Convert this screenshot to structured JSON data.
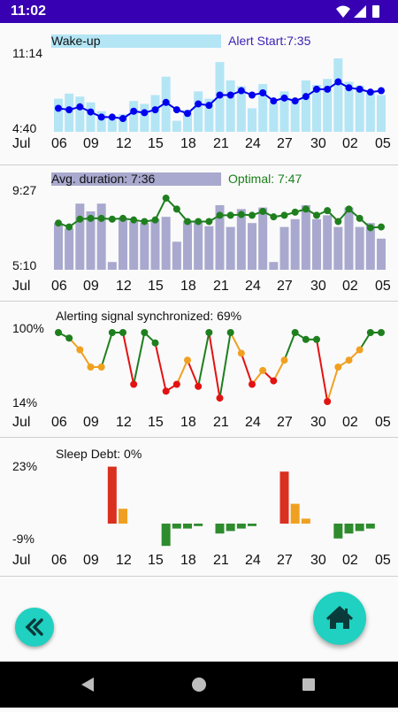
{
  "status_bar": {
    "time": "11:02",
    "icons": [
      "wifi-icon",
      "signal-icon",
      "battery-icon"
    ]
  },
  "x_axis": {
    "month": "Jul",
    "ticks": [
      "06",
      "09",
      "12",
      "15",
      "18",
      "21",
      "24",
      "27",
      "30",
      "02",
      "05"
    ]
  },
  "panels": [
    {
      "id": "wakeup",
      "title": "Wake-up",
      "side_label": "Alert Start:7:35",
      "y_top": "11:14",
      "y_bottom": "4:40",
      "bar_color": "#b3e5f5",
      "title_box_color": "#b3e5f5",
      "side_color": "#3b1fb3",
      "line_color": "#0000ee"
    },
    {
      "id": "duration",
      "title": "Avg. duration: 7:36",
      "side_label": "Optimal: 7:47",
      "y_top": "9:27",
      "y_bottom": "5:10",
      "bar_color": "#a9a9cf",
      "title_box_color": "#a9a9cf",
      "side_color": "#1a7f1a",
      "line_color": "#1f7f1f"
    },
    {
      "id": "alerting",
      "title": "Alerting signal synchronized: 69%",
      "y_top": "100%",
      "y_bottom": "14%"
    },
    {
      "id": "debt",
      "title": "Sleep Debt: 0%",
      "y_top": "23%",
      "y_bottom": "-9%"
    }
  ],
  "buttons": {
    "back_icon": "double-chevron-left-icon",
    "home_icon": "home-icon"
  },
  "nav": {
    "back": "triangle-back-icon",
    "home": "circle-home-icon",
    "recents": "square-recents-icon"
  },
  "chart_data": [
    {
      "type": "bar",
      "name": "wake-up",
      "categories": [
        "06",
        "07",
        "08",
        "09",
        "10",
        "11",
        "12",
        "13",
        "14",
        "15",
        "16",
        "17",
        "18",
        "19",
        "20",
        "21",
        "22",
        "23",
        "24",
        "25",
        "26",
        "27",
        "28",
        "29",
        "30",
        "31",
        "01",
        "02",
        "03",
        "04",
        "05"
      ],
      "bars": [
        0.45,
        0.52,
        0.48,
        0.4,
        0.28,
        0.2,
        0.24,
        0.42,
        0.38,
        0.5,
        0.75,
        0.15,
        0.3,
        0.55,
        0.45,
        0.95,
        0.7,
        0.62,
        0.32,
        0.65,
        0.4,
        0.55,
        0.45,
        0.7,
        0.64,
        0.72,
        1.0,
        0.68,
        0.63,
        0.55,
        0.5
      ],
      "line": [
        0.32,
        0.3,
        0.34,
        0.27,
        0.2,
        0.2,
        0.18,
        0.28,
        0.26,
        0.3,
        0.4,
        0.3,
        0.25,
        0.38,
        0.36,
        0.5,
        0.5,
        0.56,
        0.5,
        0.53,
        0.42,
        0.46,
        0.42,
        0.48,
        0.58,
        0.58,
        0.68,
        0.6,
        0.58,
        0.54,
        0.56
      ]
    },
    {
      "type": "bar",
      "name": "duration",
      "categories": [
        "06",
        "07",
        "08",
        "09",
        "10",
        "11",
        "12",
        "13",
        "14",
        "15",
        "16",
        "17",
        "18",
        "19",
        "20",
        "21",
        "22",
        "23",
        "24",
        "25",
        "26",
        "27",
        "28",
        "29",
        "30",
        "31",
        "01",
        "02",
        "03",
        "04",
        "05"
      ],
      "bars": [
        0.6,
        0.53,
        0.85,
        0.75,
        0.85,
        0.1,
        0.65,
        0.62,
        0.6,
        0.65,
        0.68,
        0.36,
        0.63,
        0.61,
        0.56,
        0.83,
        0.55,
        0.78,
        0.6,
        0.8,
        0.1,
        0.55,
        0.65,
        0.83,
        0.65,
        0.7,
        0.55,
        0.8,
        0.55,
        0.6,
        0.4
      ],
      "line": [
        0.6,
        0.55,
        0.65,
        0.66,
        0.66,
        0.65,
        0.66,
        0.64,
        0.62,
        0.64,
        0.92,
        0.78,
        0.62,
        0.62,
        0.62,
        0.7,
        0.7,
        0.71,
        0.7,
        0.75,
        0.68,
        0.7,
        0.74,
        0.78,
        0.7,
        0.76,
        0.62,
        0.78,
        0.66,
        0.54,
        0.55
      ]
    },
    {
      "type": "line",
      "name": "alerting",
      "categories": [
        "06",
        "07",
        "08",
        "09",
        "10",
        "11",
        "12",
        "13",
        "14",
        "15",
        "16",
        "17",
        "18",
        "19",
        "20",
        "21",
        "22",
        "23",
        "24",
        "25",
        "26",
        "27",
        "28",
        "29",
        "30",
        "31",
        "01",
        "02",
        "03",
        "04",
        "05"
      ],
      "values": [
        1.0,
        0.92,
        0.75,
        0.5,
        0.5,
        1.0,
        1.0,
        0.25,
        1.0,
        0.85,
        0.15,
        0.25,
        0.6,
        0.22,
        1.0,
        0.05,
        1.0,
        0.7,
        0.25,
        0.45,
        0.3,
        0.6,
        1.0,
        0.9,
        0.9,
        0.0,
        0.5,
        0.6,
        0.75,
        1.0,
        1.0
      ],
      "colors": [
        "#1e7f1e",
        "#1e7f1e",
        "#f0a020",
        "#f0a020",
        "#f0a020",
        "#1e7f1e",
        "#1e7f1e",
        "#e31212",
        "#1e7f1e",
        "#1e7f1e",
        "#e31212",
        "#e31212",
        "#f0a020",
        "#e31212",
        "#1e7f1e",
        "#e31212",
        "#1e7f1e",
        "#f0a020",
        "#e31212",
        "#f0a020",
        "#e31212",
        "#f0a020",
        "#1e7f1e",
        "#1e7f1e",
        "#1e7f1e",
        "#e31212",
        "#f0a020",
        "#f0a020",
        "#f0a020",
        "#1e7f1e",
        "#1e7f1e"
      ]
    },
    {
      "type": "bar",
      "name": "sleep-debt",
      "categories": [
        "06",
        "07",
        "08",
        "09",
        "10",
        "11",
        "12",
        "13",
        "14",
        "15",
        "16",
        "17",
        "18",
        "19",
        "20",
        "21",
        "22",
        "23",
        "24",
        "25",
        "26",
        "27",
        "28",
        "29",
        "30",
        "31",
        "01",
        "02",
        "03",
        "04",
        "05"
      ],
      "values": [
        0,
        0,
        0,
        0,
        0,
        23,
        6,
        0,
        0,
        0,
        -9,
        -2,
        -2,
        -1,
        0,
        -4,
        -3,
        -2,
        -1,
        0,
        0,
        21,
        8,
        2,
        0,
        0,
        -6,
        -4,
        -3,
        -2,
        0
      ],
      "colors": [
        "",
        "",
        "",
        "",
        "",
        "#d93020",
        "#f0a020",
        "",
        "",
        "",
        "#2e8b2e",
        "#2e8b2e",
        "#2e8b2e",
        "#2e8b2e",
        "",
        "#2e8b2e",
        "#2e8b2e",
        "#2e8b2e",
        "#2e8b2e",
        "",
        "",
        "#d93020",
        "#f0a020",
        "#f0a020",
        "",
        "",
        "#2e8b2e",
        "#2e8b2e",
        "#2e8b2e",
        "#2e8b2e",
        ""
      ]
    }
  ]
}
